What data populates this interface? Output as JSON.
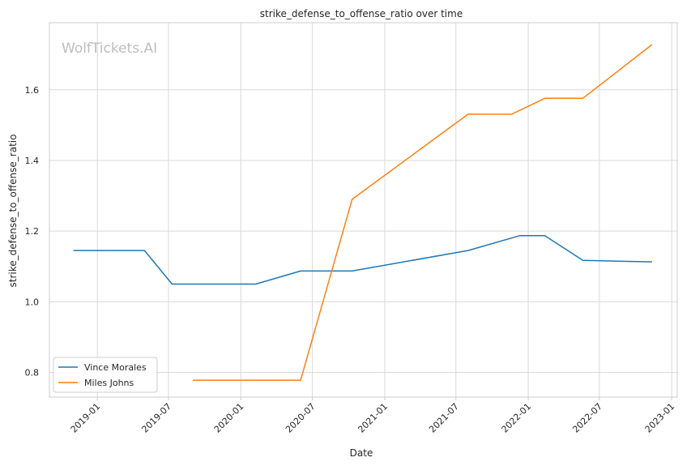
{
  "chart_data": {
    "type": "line",
    "title": "strike_defense_to_offense_ratio over time",
    "xlabel": "Date",
    "ylabel": "strike_defense_to_offense_ratio",
    "watermark": "WolfTickets.AI",
    "x_ticks": [
      "2019-01",
      "2019-07",
      "2020-01",
      "2020-07",
      "2021-01",
      "2021-07",
      "2022-01",
      "2022-07",
      "2023-01"
    ],
    "y_ticks": [
      "0.8",
      "1.0",
      "1.2",
      "1.4",
      "1.6"
    ],
    "x_range": [
      "2018-09-01",
      "2023-01-15"
    ],
    "ylim": [
      0.73,
      1.79
    ],
    "grid": true,
    "legend_position": "lower-left",
    "series": [
      {
        "name": "Vince Morales",
        "color": "#1f77b4",
        "points": [
          {
            "x": "2018-11-01",
            "y": 1.145
          },
          {
            "x": "2019-05-01",
            "y": 1.145
          },
          {
            "x": "2019-07-10",
            "y": 1.05
          },
          {
            "x": "2020-02-08",
            "y": 1.05
          },
          {
            "x": "2020-06-01",
            "y": 1.087
          },
          {
            "x": "2020-10-10",
            "y": 1.087
          },
          {
            "x": "2021-08-01",
            "y": 1.145
          },
          {
            "x": "2021-12-10",
            "y": 1.187
          },
          {
            "x": "2022-02-12",
            "y": 1.187
          },
          {
            "x": "2022-05-20",
            "y": 1.117
          },
          {
            "x": "2022-11-12",
            "y": 1.113
          }
        ]
      },
      {
        "name": "Miles Johns",
        "color": "#ff7f0e",
        "points": [
          {
            "x": "2019-09-01",
            "y": 0.778
          },
          {
            "x": "2020-06-01",
            "y": 0.778
          },
          {
            "x": "2020-10-10",
            "y": 1.29
          },
          {
            "x": "2021-08-01",
            "y": 1.531
          },
          {
            "x": "2021-11-20",
            "y": 1.531
          },
          {
            "x": "2022-02-12",
            "y": 1.576
          },
          {
            "x": "2022-05-20",
            "y": 1.576
          },
          {
            "x": "2022-11-12",
            "y": 1.728
          }
        ]
      }
    ]
  }
}
